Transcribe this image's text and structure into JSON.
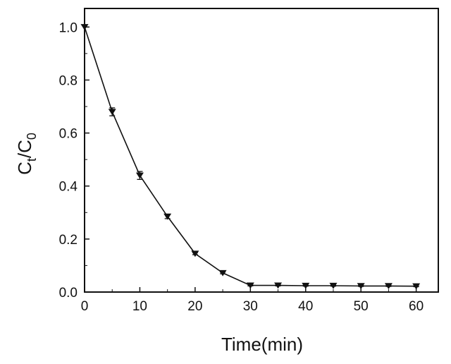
{
  "chart_data": {
    "type": "line",
    "title": "",
    "xlabel": "Time(min)",
    "ylabel": {
      "main": "C",
      "sub1": "t",
      "mid": "/C",
      "sub2": "0"
    },
    "xlim": [
      0,
      64
    ],
    "ylim": [
      0,
      1.07
    ],
    "xticks": [
      0,
      10,
      20,
      30,
      40,
      50,
      60
    ],
    "yticks": [
      0.0,
      0.2,
      0.4,
      0.6,
      0.8,
      1.0
    ],
    "xtick_labels": [
      "0",
      "10",
      "20",
      "30",
      "40",
      "50",
      "60"
    ],
    "ytick_labels": [
      "0.0",
      "0.2",
      "0.4",
      "0.6",
      "0.8",
      "1.0"
    ],
    "grid": false,
    "marker": "down-triangle",
    "color": "#111111",
    "series": [
      {
        "x": [
          0,
          5,
          10,
          15,
          20,
          25,
          30,
          35,
          40,
          45,
          50,
          55,
          60
        ],
        "y": [
          1.0,
          0.68,
          0.44,
          0.285,
          0.145,
          0.072,
          0.025,
          0.025,
          0.024,
          0.024,
          0.023,
          0.023,
          0.022
        ],
        "err": [
          0,
          0.015,
          0.015,
          0.008,
          0.004,
          0.003,
          0.002,
          0.002,
          0.002,
          0.002,
          0.002,
          0.002,
          0.002
        ]
      }
    ]
  }
}
